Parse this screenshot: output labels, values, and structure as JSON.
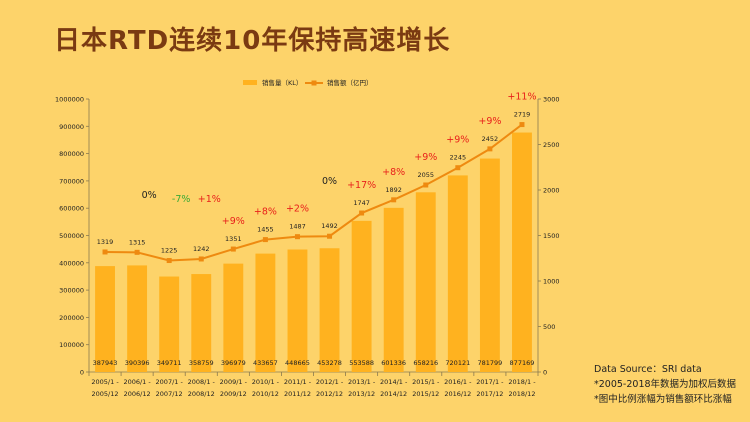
{
  "page": {
    "title": "日本RTD连续10年保持高速增长",
    "notes": [
      "Data Source：SRI data",
      "*2005-2018年数据为加权后数据",
      "*图中比例涨幅为销售额环比涨幅"
    ]
  },
  "chart_data": {
    "type": "bar+line",
    "categories": [
      [
        "2005/1 -",
        "2005/12"
      ],
      [
        "2006/1 -",
        "2006/12"
      ],
      [
        "2007/1 -",
        "2007/12"
      ],
      [
        "2008/1 -",
        "2008/12"
      ],
      [
        "2009/1 -",
        "2009/12"
      ],
      [
        "2010/1 -",
        "2010/12"
      ],
      [
        "2011/1 -",
        "2011/12"
      ],
      [
        "2012/1 -",
        "2012/12"
      ],
      [
        "2013/1 -",
        "2013/12"
      ],
      [
        "2014/1 -",
        "2014/12"
      ],
      [
        "2015/1 -",
        "2015/12"
      ],
      [
        "2016/1 -",
        "2016/12"
      ],
      [
        "2017/1 -",
        "2017/12"
      ],
      [
        "2018/1 -",
        "2018/12"
      ]
    ],
    "series": [
      {
        "name": "销售量（KL）",
        "type": "bar",
        "axis": "left",
        "color": "#FFB21F",
        "values": [
          387943,
          390396,
          349711,
          358759,
          396979,
          433657,
          448665,
          453278,
          553588,
          601336,
          658216,
          720121,
          781799,
          877169
        ],
        "labels": [
          "387943",
          "390396",
          "349711",
          "358759",
          "396979",
          "433657",
          "448665",
          "453278",
          "553588",
          "601336",
          "658216",
          "720121",
          "781799",
          "877169"
        ]
      },
      {
        "name": "销售额（亿円）",
        "type": "line",
        "axis": "right",
        "color": "#EE8A10",
        "values": [
          1319,
          1315,
          1225,
          1242,
          1351,
          1455,
          1487,
          1492,
          1747,
          1892,
          2055,
          2245,
          2452,
          2719
        ],
        "labels": [
          "1319",
          "1315",
          "1225",
          "1242",
          "1351",
          "1455",
          "1487",
          "1492",
          "1747",
          "1892",
          "2055",
          "2245",
          "2452",
          "2719"
        ]
      }
    ],
    "growth": [
      {
        "text": "",
        "color": "none"
      },
      {
        "text": "0%",
        "color": "#222222"
      },
      {
        "text": "-7%",
        "color": "#3AAA35"
      },
      {
        "text": "+1%",
        "color": "#E8211B"
      },
      {
        "text": "+9%",
        "color": "#E8211B"
      },
      {
        "text": "+8%",
        "color": "#E8211B"
      },
      {
        "text": "+2%",
        "color": "#E8211B"
      },
      {
        "text": "0%",
        "color": "#222222"
      },
      {
        "text": "+17%",
        "color": "#E8211B"
      },
      {
        "text": "+8%",
        "color": "#E8211B"
      },
      {
        "text": "+9%",
        "color": "#E8211B"
      },
      {
        "text": "+9%",
        "color": "#E8211B"
      },
      {
        "text": "+9%",
        "color": "#E8211B"
      },
      {
        "text": "+11%",
        "color": "#E8211B"
      }
    ],
    "y_left": {
      "min": 0,
      "max": 1000000,
      "ticks": [
        0,
        100000,
        200000,
        300000,
        400000,
        500000,
        600000,
        700000,
        800000,
        900000,
        1000000
      ],
      "tick_labels": [
        "0",
        "100000",
        "200000",
        "300000",
        "400000",
        "500000",
        "600000",
        "700000",
        "800000",
        "900000",
        "1000000"
      ]
    },
    "y_right": {
      "min": 0,
      "max": 3000,
      "ticks": [
        0,
        500,
        1000,
        1500,
        2000,
        2500,
        3000
      ],
      "tick_labels": [
        "0",
        "500",
        "1000",
        "1500",
        "2000",
        "2500",
        "3000"
      ]
    },
    "legend": "top-center",
    "grid": false
  }
}
